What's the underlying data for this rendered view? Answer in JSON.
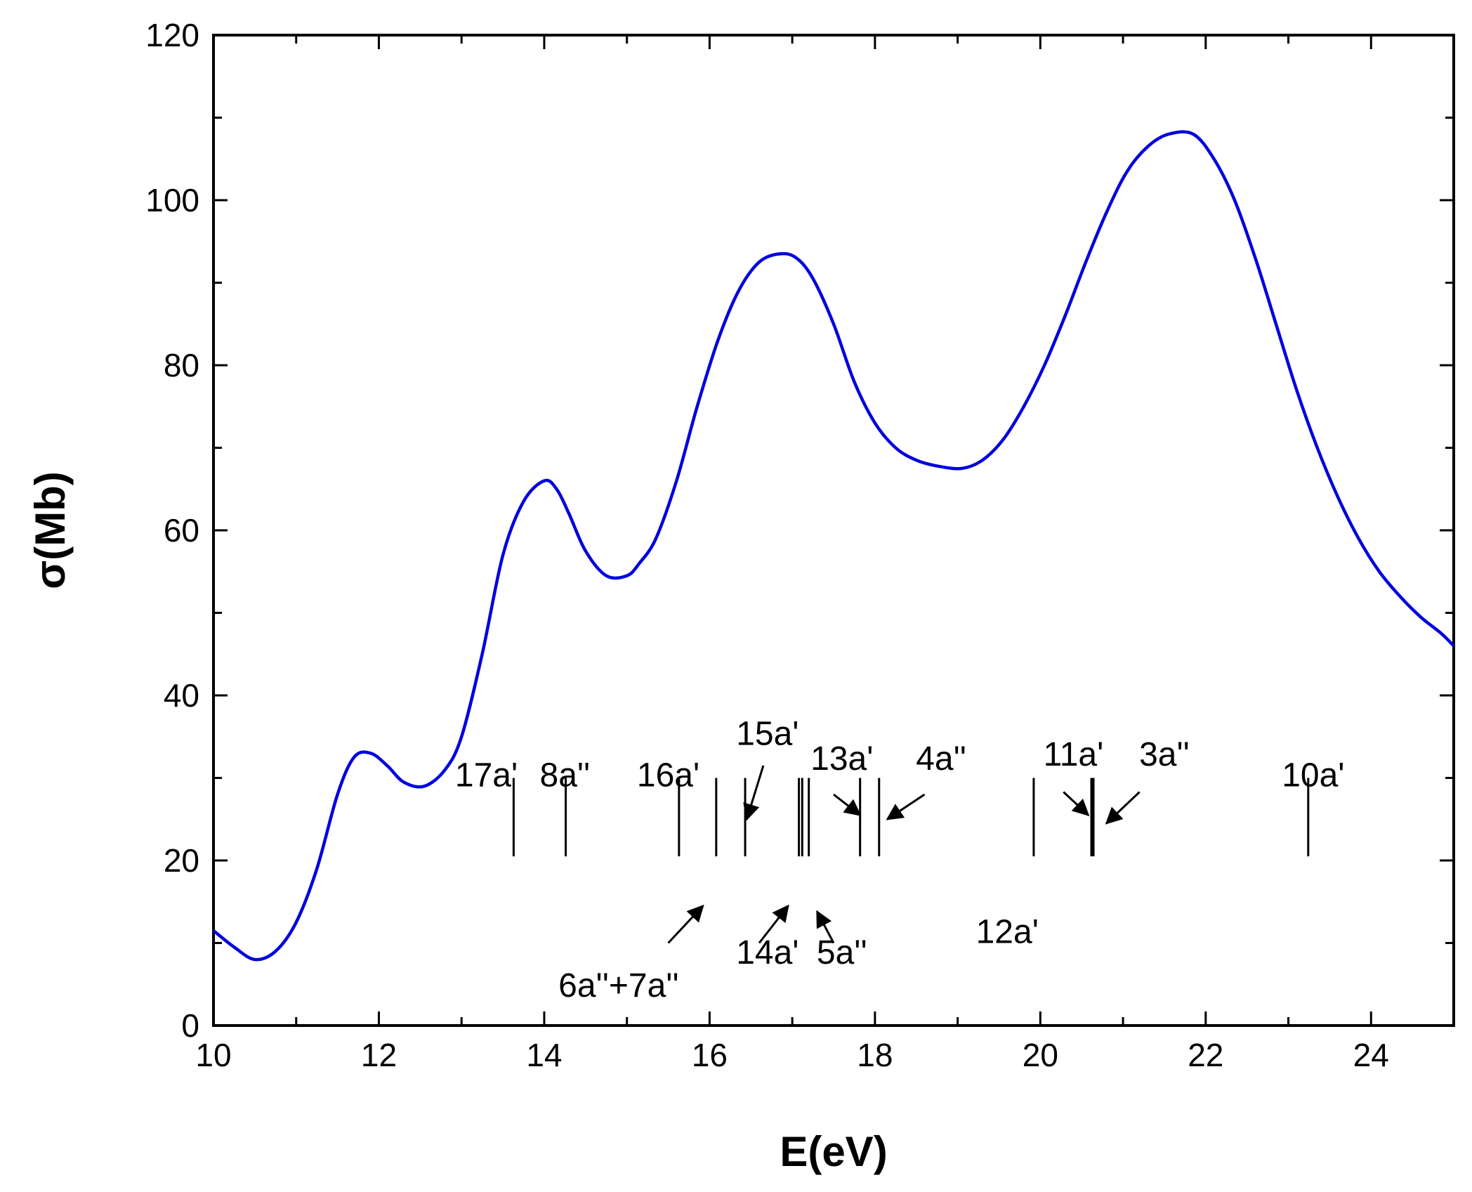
{
  "chart_data": {
    "type": "line",
    "title": "",
    "xlabel": "E(eV)",
    "ylabel": "σ(Mb)",
    "xlim": [
      10,
      25
    ],
    "ylim": [
      0,
      120
    ],
    "x_ticks": [
      10,
      12,
      14,
      16,
      18,
      20,
      22,
      24
    ],
    "y_ticks": [
      0,
      20,
      40,
      60,
      80,
      100,
      120
    ],
    "x_tick_labels": [
      "10",
      "12",
      "14",
      "16",
      "18",
      "20",
      "22",
      "24"
    ],
    "y_tick_labels": [
      "0",
      "20",
      "40",
      "60",
      "80",
      "100",
      "120"
    ],
    "grid": false,
    "line_color": "#0000dd",
    "series": [
      {
        "x": [
          10.0,
          10.25,
          10.5,
          10.75,
          11.0,
          11.25,
          11.5,
          11.7,
          11.9,
          12.1,
          12.3,
          12.55,
          12.8,
          13.0,
          13.25,
          13.5,
          13.75,
          14.0,
          14.15,
          14.3,
          14.5,
          14.75,
          15.0,
          15.15,
          15.35,
          15.6,
          15.85,
          16.1,
          16.35,
          16.6,
          16.85,
          17.05,
          17.25,
          17.5,
          17.75,
          18.0,
          18.25,
          18.5,
          18.75,
          19.05,
          19.3,
          19.55,
          19.8,
          20.05,
          20.3,
          20.55,
          20.8,
          21.05,
          21.3,
          21.55,
          21.85,
          22.1,
          22.35,
          22.6,
          22.85,
          23.1,
          23.35,
          23.6,
          23.85,
          24.1,
          24.35,
          24.6,
          24.85,
          25.0
        ],
        "y": [
          11.5,
          9.5,
          8.0,
          9.0,
          12.5,
          19.0,
          28.0,
          32.5,
          33.0,
          31.5,
          29.5,
          29.0,
          31.0,
          35.0,
          45.0,
          57.0,
          63.5,
          66.0,
          65.0,
          62.0,
          57.5,
          54.5,
          54.5,
          56.0,
          59.0,
          66.0,
          75.0,
          83.0,
          89.0,
          92.5,
          93.5,
          93.0,
          90.5,
          85.0,
          78.0,
          73.0,
          70.0,
          68.5,
          67.8,
          67.5,
          68.5,
          71.0,
          75.0,
          80.0,
          86.0,
          92.5,
          98.5,
          103.5,
          106.5,
          108.0,
          108.0,
          105.0,
          100.0,
          93.0,
          85.0,
          77.0,
          70.0,
          64.0,
          59.0,
          55.0,
          52.0,
          49.5,
          47.5,
          46.0
        ]
      }
    ],
    "orbital_lines": [
      {
        "e": 13.63,
        "bold": false
      },
      {
        "e": 14.26,
        "bold": false
      },
      {
        "e": 15.63,
        "bold": false
      },
      {
        "e": 16.08,
        "bold": false
      },
      {
        "e": 16.43,
        "bold": false
      },
      {
        "e": 17.08,
        "bold": false
      },
      {
        "e": 17.12,
        "bold": false
      },
      {
        "e": 17.2,
        "bold": false
      },
      {
        "e": 17.82,
        "bold": false
      },
      {
        "e": 18.05,
        "bold": false
      },
      {
        "e": 19.92,
        "bold": false
      },
      {
        "e": 20.63,
        "bold": true
      },
      {
        "e": 23.24,
        "bold": false
      }
    ],
    "orbital_line_range": [
      20.5,
      30.0
    ],
    "annotations": {
      "a17": {
        "text": "17a'",
        "x": 13.3,
        "y": 29.0
      },
      "a8b": {
        "text": "8a''",
        "x": 14.25,
        "y": 29.0
      },
      "a16": {
        "text": "16a'",
        "x": 15.5,
        "y": 29.0
      },
      "a15": {
        "text": "15a'",
        "x": 16.7,
        "y": 34.0,
        "arrow_from": [
          16.65,
          31.5
        ],
        "arrow_to": [
          16.45,
          25.0
        ]
      },
      "a13": {
        "text": "13a'",
        "x": 17.6,
        "y": 31.0,
        "arrow_from": [
          17.5,
          28.0
        ],
        "arrow_to": [
          17.82,
          25.5
        ]
      },
      "a4b": {
        "text": "4a''",
        "x": 18.8,
        "y": 31.0,
        "arrow_from": [
          18.6,
          28.0
        ],
        "arrow_to": [
          18.15,
          25.0
        ]
      },
      "a11": {
        "text": "11a'",
        "x": 20.4,
        "y": 31.5,
        "arrow_from": [
          20.28,
          28.3
        ],
        "arrow_to": [
          20.58,
          25.5
        ]
      },
      "a3b": {
        "text": "3a''",
        "x": 21.5,
        "y": 31.5,
        "arrow_from": [
          21.2,
          28.3
        ],
        "arrow_to": [
          20.8,
          24.5
        ]
      },
      "a10": {
        "text": "10a'",
        "x": 23.3,
        "y": 29.0
      },
      "a6a7": {
        "text": "6a''+7a''",
        "x": 14.9,
        "y": 3.5,
        "arrow_from": [
          15.5,
          10.0
        ],
        "arrow_to": [
          15.92,
          14.5
        ]
      },
      "a14": {
        "text": "14a'",
        "x": 16.7,
        "y": 7.5,
        "arrow_from": [
          16.6,
          10.0
        ],
        "arrow_to": [
          16.95,
          14.5
        ]
      },
      "a5b": {
        "text": "5a''",
        "x": 17.6,
        "y": 7.5,
        "arrow_from": [
          17.5,
          10.0
        ],
        "arrow_to": [
          17.3,
          13.8
        ]
      },
      "a12": {
        "text": "12a'",
        "x": 19.6,
        "y": 10.0
      }
    }
  }
}
